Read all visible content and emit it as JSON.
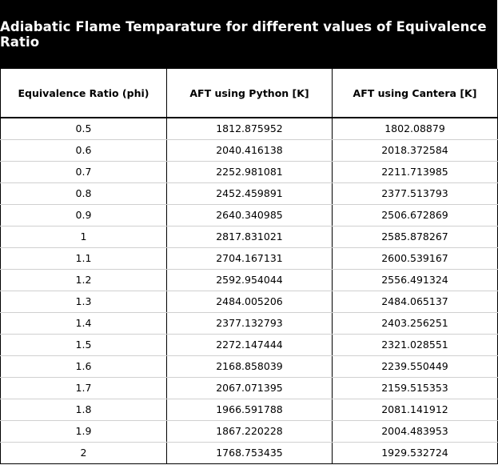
{
  "title": "Adiabatic Flame Temparature for different values of Equivalence Ratio",
  "columns": [
    "Equivalence Ratio (phi)",
    "AFT using Python [K]",
    "AFT using Cantera [K]"
  ],
  "rows": [
    [
      "0.5",
      "1812.875952",
      "1802.08879"
    ],
    [
      "0.6",
      "2040.416138",
      "2018.372584"
    ],
    [
      "0.7",
      "2252.981081",
      "2211.713985"
    ],
    [
      "0.8",
      "2452.459891",
      "2377.513793"
    ],
    [
      "0.9",
      "2640.340985",
      "2506.672869"
    ],
    [
      "1",
      "2817.831021",
      "2585.878267"
    ],
    [
      "1.1",
      "2704.167131",
      "2600.539167"
    ],
    [
      "1.2",
      "2592.954044",
      "2556.491324"
    ],
    [
      "1.3",
      "2484.005206",
      "2484.065137"
    ],
    [
      "1.4",
      "2377.132793",
      "2403.256251"
    ],
    [
      "1.5",
      "2272.147444",
      "2321.028551"
    ],
    [
      "1.6",
      "2168.858039",
      "2239.550449"
    ],
    [
      "1.7",
      "2067.071395",
      "2159.515353"
    ],
    [
      "1.8",
      "1966.591788",
      "2081.141912"
    ],
    [
      "1.9",
      "1867.220228",
      "2004.483953"
    ],
    [
      "2",
      "1768.753435",
      "1929.532724"
    ]
  ]
}
